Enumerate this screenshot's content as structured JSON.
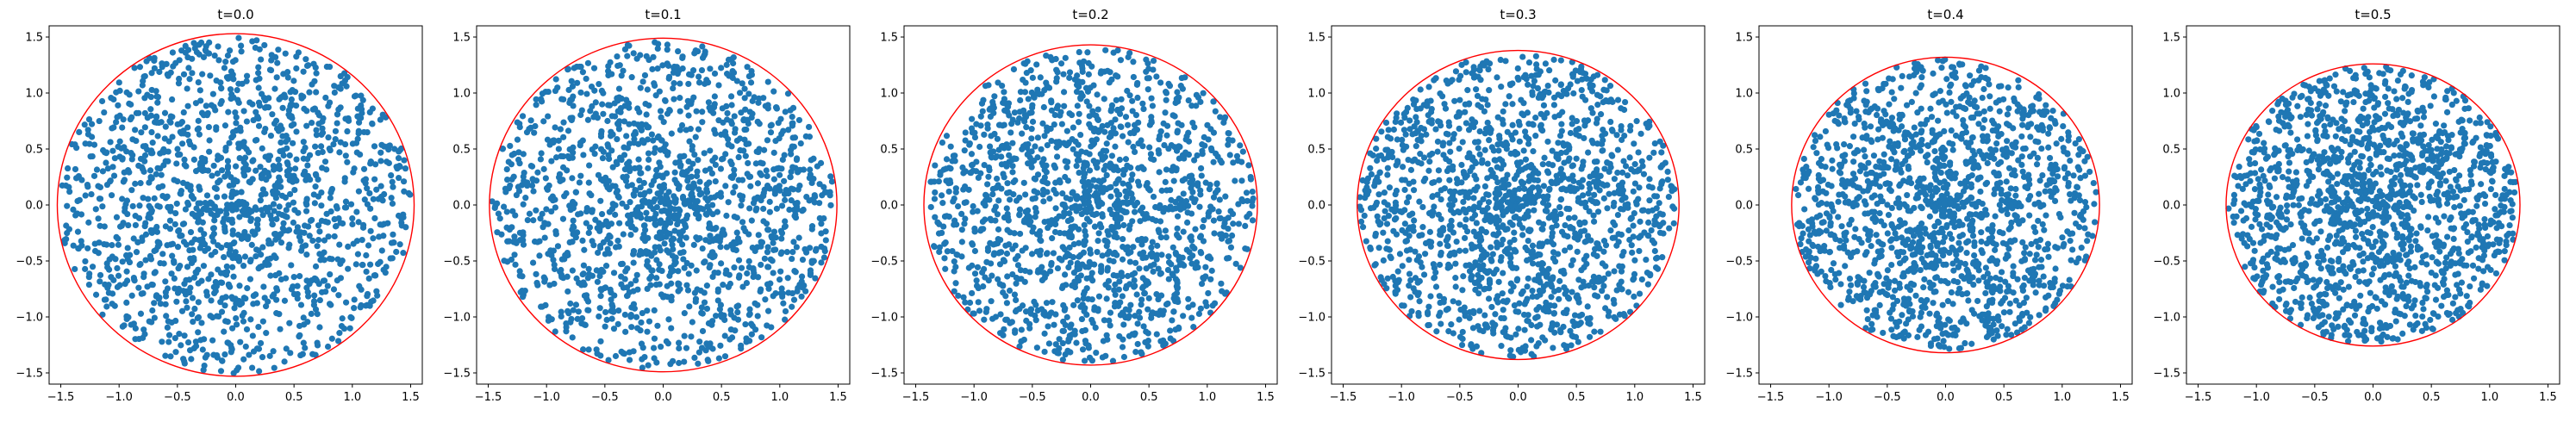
{
  "figure": {
    "background": "#ffffff",
    "point_color": "#1f77b4",
    "circle_color": "#ff0000"
  },
  "chart_data": [
    {
      "type": "scatter",
      "title": "t=0.0",
      "xlabel": "",
      "ylabel": "",
      "xlim": [
        -1.6,
        1.6
      ],
      "ylim": [
        -1.6,
        1.6
      ],
      "xticks": [
        -1.5,
        -1.0,
        -0.5,
        0.0,
        0.5,
        1.0,
        1.5
      ],
      "yticks": [
        -1.5,
        -1.0,
        -0.5,
        0.0,
        0.5,
        1.0,
        1.5
      ],
      "xtick_labels": [
        "−1.5",
        "−1.0",
        "−0.5",
        "0.0",
        "0.5",
        "1.0",
        "1.5"
      ],
      "ytick_labels": [
        "−1.5",
        "−1.0",
        "−0.5",
        "0.0",
        "0.5",
        "1.0",
        "1.5"
      ],
      "bounding_circle_radius": 1.53,
      "points_in_disk": {
        "count": 1500,
        "seed": 11,
        "radius": 1.53,
        "distribution": "uniform-ish, denser near center"
      },
      "grid": false
    },
    {
      "type": "scatter",
      "title": "t=0.1",
      "xlabel": "",
      "ylabel": "",
      "xlim": [
        -1.6,
        1.6
      ],
      "ylim": [
        -1.6,
        1.6
      ],
      "xticks": [
        -1.5,
        -1.0,
        -0.5,
        0.0,
        0.5,
        1.0,
        1.5
      ],
      "yticks": [
        -1.5,
        -1.0,
        -0.5,
        0.0,
        0.5,
        1.0,
        1.5
      ],
      "xtick_labels": [
        "−1.5",
        "−1.0",
        "−0.5",
        "0.0",
        "0.5",
        "1.0",
        "1.5"
      ],
      "ytick_labels": [
        "−1.5",
        "−1.0",
        "−0.5",
        "0.0",
        "0.5",
        "1.0",
        "1.5"
      ],
      "bounding_circle_radius": 1.49,
      "points_in_disk": {
        "count": 1500,
        "seed": 23,
        "radius": 1.49,
        "distribution": "uniform-ish, denser near center"
      },
      "grid": false
    },
    {
      "type": "scatter",
      "title": "t=0.2",
      "xlabel": "",
      "ylabel": "",
      "xlim": [
        -1.6,
        1.6
      ],
      "ylim": [
        -1.6,
        1.6
      ],
      "xticks": [
        -1.5,
        -1.0,
        -0.5,
        0.0,
        0.5,
        1.0,
        1.5
      ],
      "yticks": [
        -1.5,
        -1.0,
        -0.5,
        0.0,
        0.5,
        1.0,
        1.5
      ],
      "xtick_labels": [
        "−1.5",
        "−1.0",
        "−0.5",
        "0.0",
        "0.5",
        "1.0",
        "1.5"
      ],
      "ytick_labels": [
        "−1.5",
        "−1.0",
        "−0.5",
        "0.0",
        "0.5",
        "1.0",
        "1.5"
      ],
      "bounding_circle_radius": 1.43,
      "points_in_disk": {
        "count": 1500,
        "seed": 37,
        "radius": 1.43,
        "distribution": "uniform-ish, denser near center"
      },
      "grid": false
    },
    {
      "type": "scatter",
      "title": "t=0.3",
      "xlabel": "",
      "ylabel": "",
      "xlim": [
        -1.6,
        1.6
      ],
      "ylim": [
        -1.6,
        1.6
      ],
      "xticks": [
        -1.5,
        -1.0,
        -0.5,
        0.0,
        0.5,
        1.0,
        1.5
      ],
      "yticks": [
        -1.5,
        -1.0,
        -0.5,
        0.0,
        0.5,
        1.0,
        1.5
      ],
      "xtick_labels": [
        "−1.5",
        "−1.0",
        "−0.5",
        "0.0",
        "0.5",
        "1.0",
        "1.5"
      ],
      "ytick_labels": [
        "−1.5",
        "−1.0",
        "−0.5",
        "0.0",
        "0.5",
        "1.0",
        "1.5"
      ],
      "bounding_circle_radius": 1.38,
      "points_in_disk": {
        "count": 1500,
        "seed": 53,
        "radius": 1.38,
        "distribution": "uniform-ish, denser near center"
      },
      "grid": false
    },
    {
      "type": "scatter",
      "title": "t=0.4",
      "xlabel": "",
      "ylabel": "",
      "xlim": [
        -1.6,
        1.6
      ],
      "ylim": [
        -1.6,
        1.6
      ],
      "xticks": [
        -1.5,
        -1.0,
        -0.5,
        0.0,
        0.5,
        1.0,
        1.5
      ],
      "yticks": [
        -1.5,
        -1.0,
        -0.5,
        0.0,
        0.5,
        1.0,
        1.5
      ],
      "xtick_labels": [
        "−1.5",
        "−1.0",
        "−0.5",
        "0.0",
        "0.5",
        "1.0",
        "1.5"
      ],
      "ytick_labels": [
        "−1.5",
        "−1.0",
        "−0.5",
        "0.0",
        "0.5",
        "1.0",
        "1.5"
      ],
      "bounding_circle_radius": 1.32,
      "points_in_disk": {
        "count": 1500,
        "seed": 71,
        "radius": 1.32,
        "distribution": "uniform-ish, denser near center"
      },
      "grid": false
    },
    {
      "type": "scatter",
      "title": "t=0.5",
      "xlabel": "",
      "ylabel": "",
      "xlim": [
        -1.6,
        1.6
      ],
      "ylim": [
        -1.6,
        1.6
      ],
      "xticks": [
        -1.5,
        -1.0,
        -0.5,
        0.0,
        0.5,
        1.0,
        1.5
      ],
      "yticks": [
        -1.5,
        -1.0,
        -0.5,
        0.0,
        0.5,
        1.0,
        1.5
      ],
      "xtick_labels": [
        "−1.5",
        "−1.0",
        "−0.5",
        "0.0",
        "0.5",
        "1.0",
        "1.5"
      ],
      "ytick_labels": [
        "−1.5",
        "−1.0",
        "−0.5",
        "0.0",
        "0.5",
        "1.0",
        "1.5"
      ],
      "bounding_circle_radius": 1.26,
      "points_in_disk": {
        "count": 1500,
        "seed": 97,
        "radius": 1.26,
        "distribution": "uniform-ish, denser near center"
      },
      "grid": false
    }
  ]
}
